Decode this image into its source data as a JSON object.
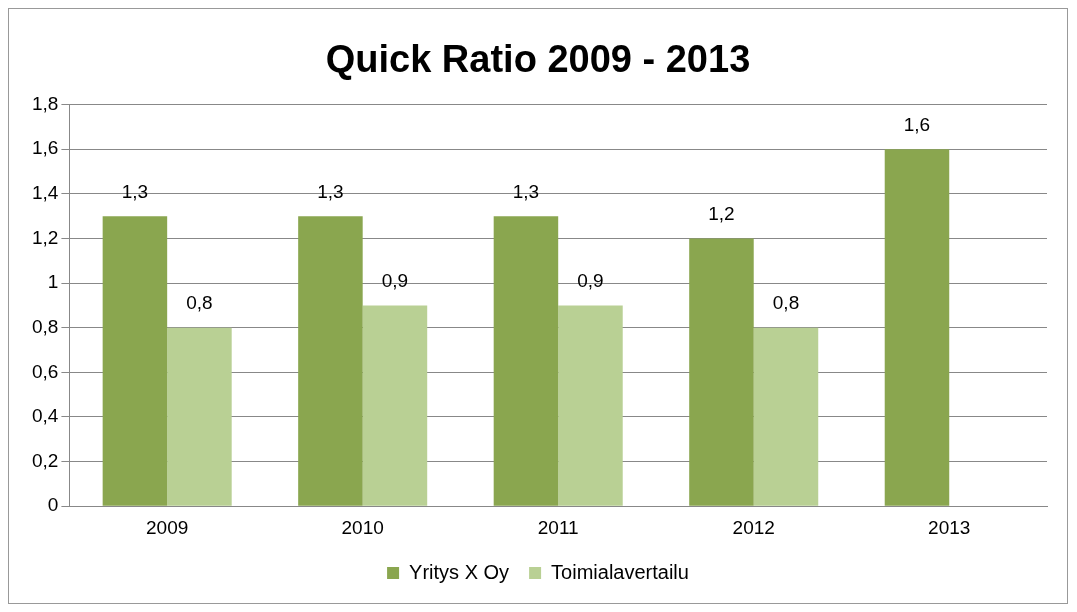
{
  "chart_data": {
    "type": "bar",
    "title": "Quick Ratio 2009 - 2013",
    "categories": [
      "2009",
      "2010",
      "2011",
      "2012",
      "2013"
    ],
    "series": [
      {
        "name": "Yritys X Oy",
        "color": "#8aa64f",
        "values": [
          1.3,
          1.3,
          1.3,
          1.2,
          1.6
        ],
        "value_labels": [
          "1,3",
          "1,3",
          "1,3",
          "1,2",
          "1,6"
        ]
      },
      {
        "name": "Toimialavertailu",
        "color": "#b9d094",
        "values": [
          0.8,
          0.9,
          0.9,
          0.8,
          null
        ],
        "value_labels": [
          "0,8",
          "0,9",
          "0,9",
          "0,8",
          null
        ]
      }
    ],
    "ylim": [
      0,
      1.8
    ],
    "yticks": [
      0,
      {
        "value": 0.2,
        "label": "0,2"
      },
      {
        "value": 0.4,
        "label": "0,4"
      },
      {
        "value": 0.6,
        "label": "0,6"
      },
      {
        "value": 0.8,
        "label": "0,8"
      },
      1,
      {
        "value": 1.2,
        "label": "1,2"
      },
      {
        "value": 1.4,
        "label": "1,4"
      },
      {
        "value": 1.6,
        "label": "1,6"
      },
      {
        "value": 1.8,
        "label": "1,8"
      }
    ],
    "grid": "y",
    "legend": "bottom"
  }
}
